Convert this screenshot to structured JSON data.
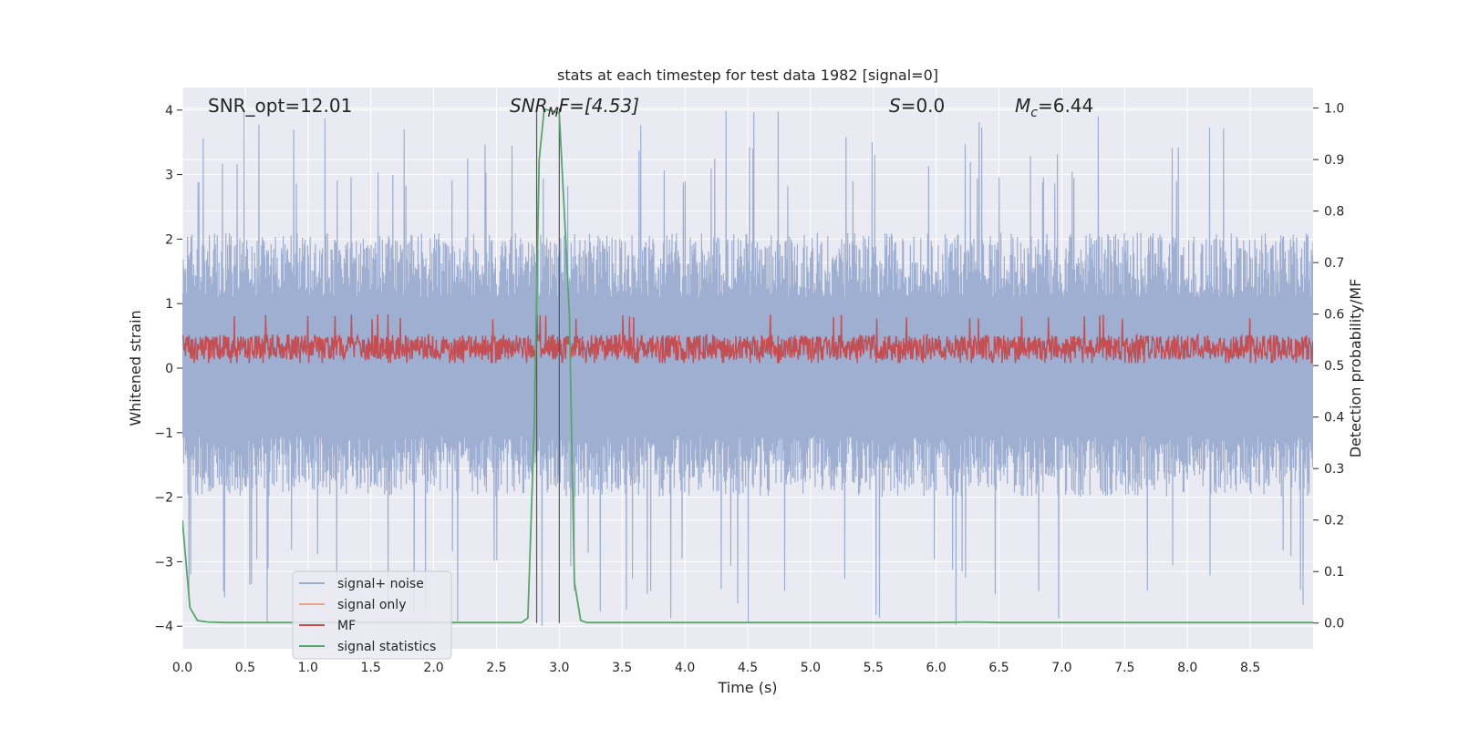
{
  "chart_data": {
    "type": "line",
    "title": "stats at each timestep for test data 1982 [signal=0]",
    "xlabel": "Time (s)",
    "ylabel": "Whitened strain",
    "ylabel_right": "Detection probability/MF",
    "xlim": [
      0,
      9.0
    ],
    "ylim": [
      -4.35,
      4.35
    ],
    "ylim_right": [
      -0.05,
      1.04
    ],
    "x_ticks": [
      0,
      0.5,
      1.0,
      1.5,
      2.0,
      2.5,
      3.0,
      3.5,
      4.0,
      4.5,
      5.0,
      5.5,
      6.0,
      6.5,
      7.0,
      7.5,
      8.0,
      8.5
    ],
    "x_tick_labels": [
      "0.0",
      "0.5",
      "1.0",
      "1.5",
      "2.0",
      "2.5",
      "3.0",
      "3.5",
      "4.0",
      "4.5",
      "5.0",
      "5.5",
      "6.0",
      "6.5",
      "7.0",
      "7.5",
      "8.0",
      "8.5"
    ],
    "y_ticks": [
      -4,
      -3,
      -2,
      -1,
      0,
      1,
      2,
      3,
      4
    ],
    "y_tick_labels": [
      "−4",
      "−3",
      "−2",
      "−1",
      "0",
      "1",
      "2",
      "3",
      "4"
    ],
    "y_ticks_right": [
      0.0,
      0.1,
      0.2,
      0.3,
      0.4,
      0.5,
      0.6,
      0.7,
      0.8,
      0.9,
      1.0
    ],
    "y_tick_labels_right": [
      "0.0",
      "0.1",
      "0.2",
      "0.3",
      "0.4",
      "0.5",
      "0.6",
      "0.7",
      "0.8",
      "0.9",
      "1.0"
    ],
    "annotations": {
      "snr_opt": "SNR_opt=12.01",
      "snr_mf_main": "SNR",
      "snr_mf_sub": "M",
      "snr_mf_rest": "F=[4.53]",
      "s_symbol": "S",
      "s_value": "=0.0",
      "mc_symbol": "M",
      "mc_sub": "c",
      "mc_value": "=6.44"
    },
    "vertical_lines_x": [
      2.82,
      3.0
    ],
    "legend": [
      {
        "label": "signal+ noise",
        "color": "#9aacd0"
      },
      {
        "label": "signal only",
        "color": "#eba48a"
      },
      {
        "label": "MF",
        "color": "#c44e52"
      },
      {
        "label": "signal statistics",
        "color": "#55a868"
      }
    ],
    "series": [
      {
        "name": "signal+ noise",
        "axis": "left",
        "style": "noise",
        "envelope": {
          "typical_upper": 2.0,
          "typical_lower": -1.9,
          "max_upper": 4.0,
          "min_lower": -4.0
        },
        "color": "#9aacd0"
      },
      {
        "name": "MF",
        "axis": "right",
        "style": "noise",
        "envelope": {
          "typical_upper": 0.56,
          "typical_lower": 0.51,
          "max_upper": 0.6,
          "min_lower": 0.505
        },
        "color": "#c44e52"
      },
      {
        "name": "signal statistics",
        "axis": "right",
        "color": "#55a868",
        "x": [
          0.0,
          0.06,
          0.12,
          0.2,
          0.35,
          0.6,
          1.0,
          2.0,
          2.6,
          2.7,
          2.75,
          2.8,
          2.84,
          2.88,
          2.93,
          3.0,
          3.04,
          3.08,
          3.12,
          3.17,
          3.22,
          3.3,
          4.0,
          5.0,
          6.0,
          6.3,
          6.5,
          7.0,
          8.0,
          9.0
        ],
        "y": [
          0.2,
          0.03,
          0.005,
          0.002,
          0.001,
          0.001,
          0.001,
          0.001,
          0.001,
          0.001,
          0.01,
          0.38,
          0.9,
          0.998,
          0.995,
          0.99,
          0.8,
          0.6,
          0.08,
          0.005,
          0.001,
          0.001,
          0.001,
          0.001,
          0.001,
          0.002,
          0.001,
          0.001,
          0.001,
          0.001
        ]
      }
    ]
  }
}
